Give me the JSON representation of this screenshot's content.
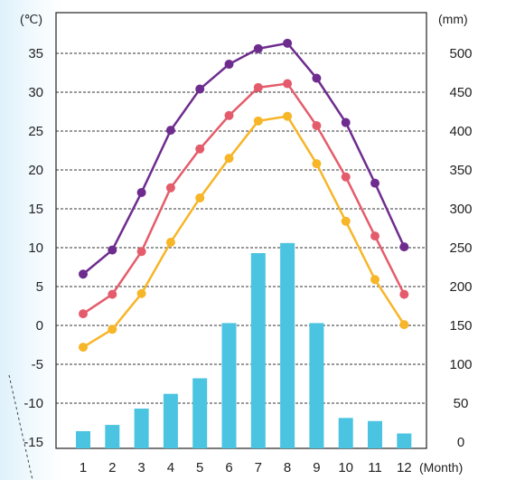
{
  "chart_data": {
    "type": "bar+line",
    "units": {
      "left": "(℃)",
      "right": "(mm)",
      "x": "(Month)"
    },
    "categories": [
      "1",
      "2",
      "3",
      "4",
      "5",
      "6",
      "7",
      "8",
      "9",
      "10",
      "11",
      "12"
    ],
    "left_axis": {
      "range": [
        -15,
        40
      ],
      "ticks": [
        "35",
        "30",
        "25",
        "20",
        "15",
        "10",
        "5",
        "0",
        "-5",
        "-10",
        "-15"
      ]
    },
    "right_axis": {
      "range": [
        0,
        550
      ],
      "ticks": [
        "500",
        "450",
        "400",
        "350",
        "300",
        "250",
        "200",
        "150",
        "100",
        "50",
        "0"
      ]
    },
    "bars": {
      "axis": "right",
      "values": [
        14,
        22,
        43,
        62,
        82,
        153,
        243,
        256,
        153,
        31,
        27,
        11
      ]
    },
    "lines": [
      {
        "axis": "left",
        "color": "#6e2c8f",
        "values": [
          6.6,
          9.7,
          17.1,
          25.1,
          30.4,
          33.6,
          35.6,
          36.3,
          31.8,
          26.1,
          18.3,
          10.1
        ]
      },
      {
        "axis": "left",
        "color": "#e45c6b",
        "values": [
          1.5,
          4.0,
          9.5,
          17.7,
          22.7,
          27.0,
          30.6,
          31.1,
          25.7,
          19.1,
          11.5,
          4.0
        ]
      },
      {
        "axis": "left",
        "color": "#f7b528",
        "values": [
          -2.8,
          -0.5,
          4.1,
          10.7,
          16.4,
          21.5,
          26.3,
          26.9,
          20.8,
          13.4,
          5.9,
          0.1
        ]
      }
    ],
    "colors": {
      "bar": "#4ac4e0",
      "grid": "#333333"
    },
    "grid": "dashed horizontal"
  }
}
